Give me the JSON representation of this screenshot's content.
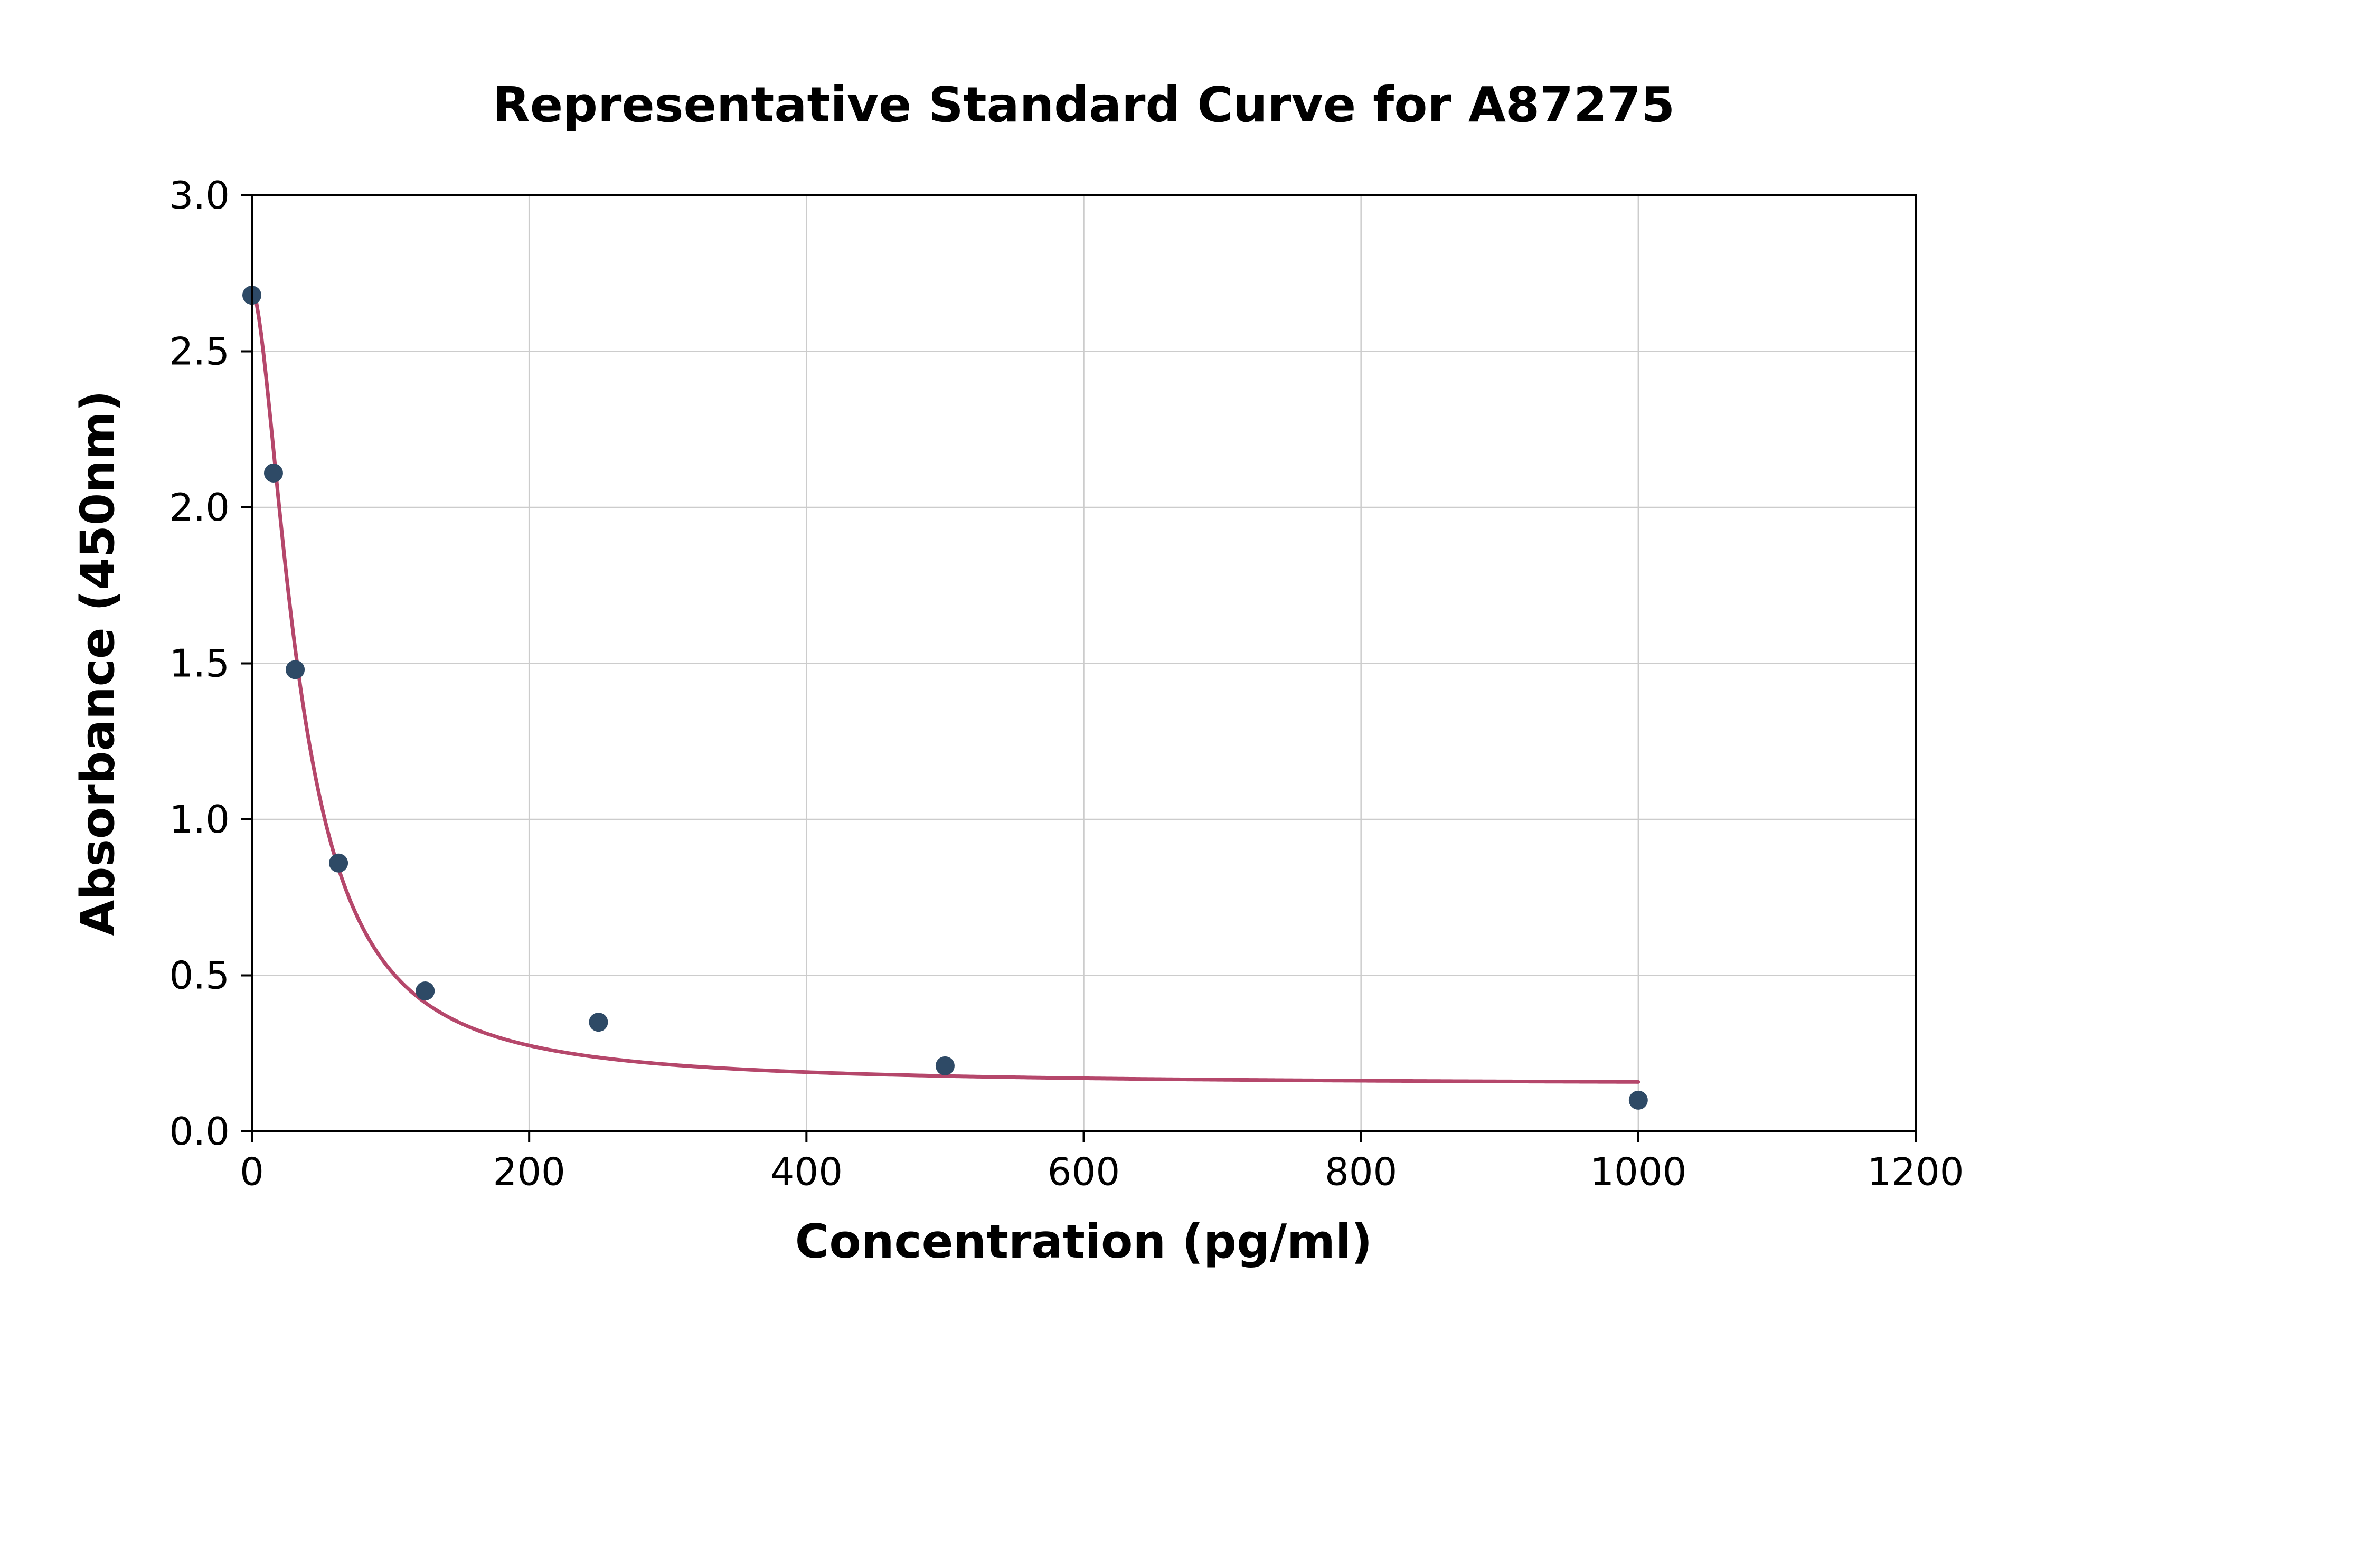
{
  "page": {
    "background_color": "#ffffff"
  },
  "chart": {
    "title": "Representative Standard Curve for A87275",
    "xlabel": "Concentration (pg/ml)",
    "ylabel": "Absorbance (450nm)"
  },
  "chart_data": {
    "type": "scatter",
    "title": "Representative Standard Curve for A87275",
    "xlabel": "Concentration (pg/ml)",
    "ylabel": "Absorbance (450nm)",
    "xlim": [
      0,
      1200
    ],
    "ylim": [
      0,
      3
    ],
    "xticks": [
      0,
      200,
      400,
      600,
      800,
      1000,
      1200
    ],
    "ytick_labels": [
      "0.0",
      "0.5",
      "1.0",
      "1.5",
      "2.0",
      "2.5",
      "3.0"
    ],
    "grid": true,
    "grid_color": "#cccccc",
    "border_color": "#000000",
    "legend": false,
    "series": [
      {
        "name": "standard-points",
        "type": "scatter",
        "color": "#2e4a66",
        "marker": "circle",
        "points": [
          [
            0,
            2.68
          ],
          [
            15.6,
            2.11
          ],
          [
            31.25,
            1.48
          ],
          [
            62.5,
            0.86
          ],
          [
            125,
            0.45
          ],
          [
            250,
            0.35
          ],
          [
            500,
            0.21
          ],
          [
            1000,
            0.1
          ]
        ]
      },
      {
        "name": "4pl-fit-curve",
        "type": "line",
        "color": "#b5476b",
        "x_start": 0,
        "x_end": 1000,
        "fit_4pl": {
          "a": 2.7,
          "b": 1.7,
          "c": 35,
          "d": 0.15
        }
      }
    ]
  }
}
